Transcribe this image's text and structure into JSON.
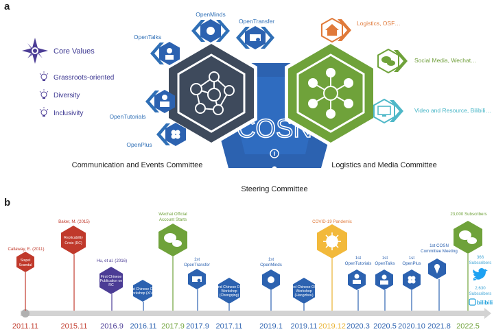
{
  "panel_a": {
    "label": "a",
    "core_values": {
      "title": "Core Values",
      "items": [
        "Grassroots-oriented",
        "Diversity",
        "Inclusivity"
      ]
    },
    "left_cluster": {
      "labels": [
        "OpenMinds",
        "OpenTalks",
        "OpenTransfer",
        "OpenTutorials",
        "OpenPlus"
      ],
      "committee": "Communication and Events Committee"
    },
    "right_cluster": {
      "labels": [
        "Logistics, OSF…",
        "Social Media, Wechat…",
        "Video and Resource, Bilibili…"
      ],
      "committee": "Logistics and Media Committee"
    },
    "center": {
      "logo_text": "COSN",
      "committee": "Steering Committee"
    },
    "colors": {
      "dark": "#3e4a5c",
      "green": "#6fa23a",
      "blue": "#2c62b0",
      "orange": "#e07a3a",
      "teal": "#4fb8c8",
      "purple": "#4b3c95"
    }
  },
  "panel_b": {
    "label": "b",
    "timeline": {
      "dates": [
        {
          "text": "2011.11",
          "color": "#c0392b"
        },
        {
          "text": "2015.11",
          "color": "#c0392b"
        },
        {
          "text": "2016.9",
          "color": "#4b3c95"
        },
        {
          "text": "2016.11",
          "color": "#2c62b0"
        },
        {
          "text": "2017.9",
          "color": "#6fa23a"
        },
        {
          "text": "2017.9",
          "color": "#2c62b0"
        },
        {
          "text": "2017.11",
          "color": "#2c62b0"
        },
        {
          "text": "2019.1",
          "color": "#2c62b0"
        },
        {
          "text": "2019.11",
          "color": "#2c62b0"
        },
        {
          "text": "2019.12",
          "color": "#e8b12f"
        },
        {
          "text": "2020.3",
          "color": "#2c62b0"
        },
        {
          "text": "2020.5",
          "color": "#2c62b0"
        },
        {
          "text": "2020.10",
          "color": "#2c62b0"
        },
        {
          "text": "2021.8",
          "color": "#2c62b0"
        },
        {
          "text": "2022.5",
          "color": "#6fa23a"
        }
      ]
    },
    "events": {
      "stapel": {
        "badge": [
          "Stapel",
          "Scandal"
        ],
        "label": "Callaway, E. (2011)"
      },
      "baker": {
        "badge": [
          "Replicability",
          "Crisis (RC)"
        ],
        "label": "Baker, M. (2015)"
      },
      "hu": {
        "badge": [
          "First Chinese",
          "Publication on",
          "RC"
        ],
        "label": "Hu, et al. (2016)"
      },
      "workshop1": {
        "badge": [
          "1st Chinese OS",
          "Workshop (Xi'an)"
        ]
      },
      "wechat": {
        "label": [
          "Wechat Official",
          "Account Starts"
        ]
      },
      "opentransfer": {
        "label": [
          "1st",
          "OpenTransfer"
        ]
      },
      "workshop2": {
        "badge": [
          "2nd Chinese OS",
          "Workshop",
          "(Chongqing)"
        ]
      },
      "openminds": {
        "label": [
          "1st",
          "OpenMinds"
        ]
      },
      "workshop3": {
        "badge": [
          "3rd Chinese OS",
          "Workshop",
          "(Hangzhou)"
        ]
      },
      "covid": {
        "label": "COVID-19 Pandemic"
      },
      "opentutorials": {
        "label": [
          "1st",
          "OpenTutorials"
        ]
      },
      "opentalks": {
        "label": [
          "1st",
          "OpenTalks"
        ]
      },
      "openplus": {
        "label": [
          "1st",
          "OpenPlus"
        ]
      },
      "meeting": {
        "label": [
          "1st COSN",
          "Committee Meeting"
        ]
      },
      "subs": {
        "wechat": "23,000 Subscribers",
        "twitter": [
          "366",
          "Subscribers"
        ],
        "bilibili": [
          "2,630",
          "Subscribers"
        ],
        "bilibili_logo": "bilibili"
      }
    }
  }
}
